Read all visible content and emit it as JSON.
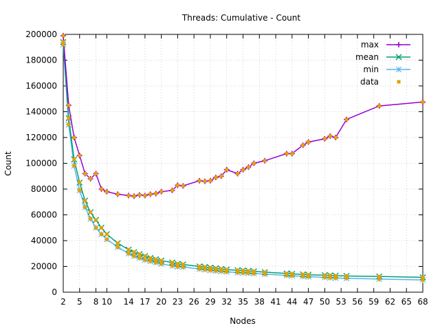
{
  "chart_data": {
    "type": "line",
    "title": "Threads: Cumulative - Count",
    "xlabel": "Nodes",
    "ylabel": "Count",
    "xlim": [
      2,
      68
    ],
    "ylim": [
      0,
      200000
    ],
    "x_ticks": [
      2,
      5,
      8,
      10,
      14,
      17,
      20,
      23,
      26,
      29,
      32,
      35,
      38,
      41,
      44,
      47,
      50,
      53,
      56,
      59,
      62,
      65,
      68
    ],
    "y_ticks": [
      0,
      20000,
      40000,
      60000,
      80000,
      100000,
      120000,
      140000,
      160000,
      180000,
      200000
    ],
    "grid": true,
    "legend_position": "top-right",
    "x": [
      2,
      3,
      4,
      5,
      6,
      7,
      8,
      9,
      10,
      12,
      14,
      15,
      16,
      17,
      18,
      19,
      20,
      22,
      23,
      24,
      27,
      28,
      29,
      30,
      31,
      32,
      34,
      35,
      36,
      37,
      39,
      43,
      44,
      46,
      47,
      50,
      51,
      52,
      54,
      60,
      68
    ],
    "series": [
      {
        "name": "max",
        "color": "#9400d3",
        "marker": "plus",
        "values": [
          199000,
          145000,
          120000,
          106000,
          92000,
          88000,
          92000,
          80000,
          78000,
          76000,
          75000,
          74500,
          75500,
          75000,
          76000,
          76500,
          78000,
          79000,
          83000,
          82500,
          86500,
          86000,
          86500,
          89000,
          90000,
          95000,
          92000,
          95000,
          97000,
          100000,
          102000,
          107500,
          107500,
          114000,
          116500,
          119000,
          121000,
          120000,
          134000,
          144500,
          147500
        ]
      },
      {
        "name": "mean",
        "color": "#009e73",
        "marker": "cross",
        "values": [
          194000,
          135000,
          103000,
          85000,
          71000,
          62000,
          56000,
          50000,
          45000,
          38000,
          33000,
          31000,
          29500,
          28000,
          26500,
          25500,
          24500,
          23000,
          22000,
          21500,
          20000,
          19500,
          19000,
          18500,
          18000,
          17500,
          17000,
          16800,
          16500,
          16200,
          15500,
          14500,
          14200,
          13800,
          13500,
          13200,
          13000,
          12800,
          12600,
          12200,
          11500
        ]
      },
      {
        "name": "min",
        "color": "#56b4e9",
        "marker": "star",
        "values": [
          192000,
          130000,
          98000,
          79000,
          66000,
          57000,
          50000,
          45000,
          41000,
          35000,
          30000,
          28000,
          26500,
          25000,
          24000,
          23000,
          22000,
          20500,
          19800,
          19500,
          18000,
          17500,
          17000,
          16500,
          16200,
          15800,
          15200,
          15000,
          14800,
          14500,
          14000,
          13000,
          12800,
          12200,
          12000,
          11500,
          11200,
          11000,
          10800,
          10200,
          9500
        ]
      }
    ],
    "data_series": {
      "name": "data",
      "color": "#e69f00",
      "marker": "square"
    }
  }
}
